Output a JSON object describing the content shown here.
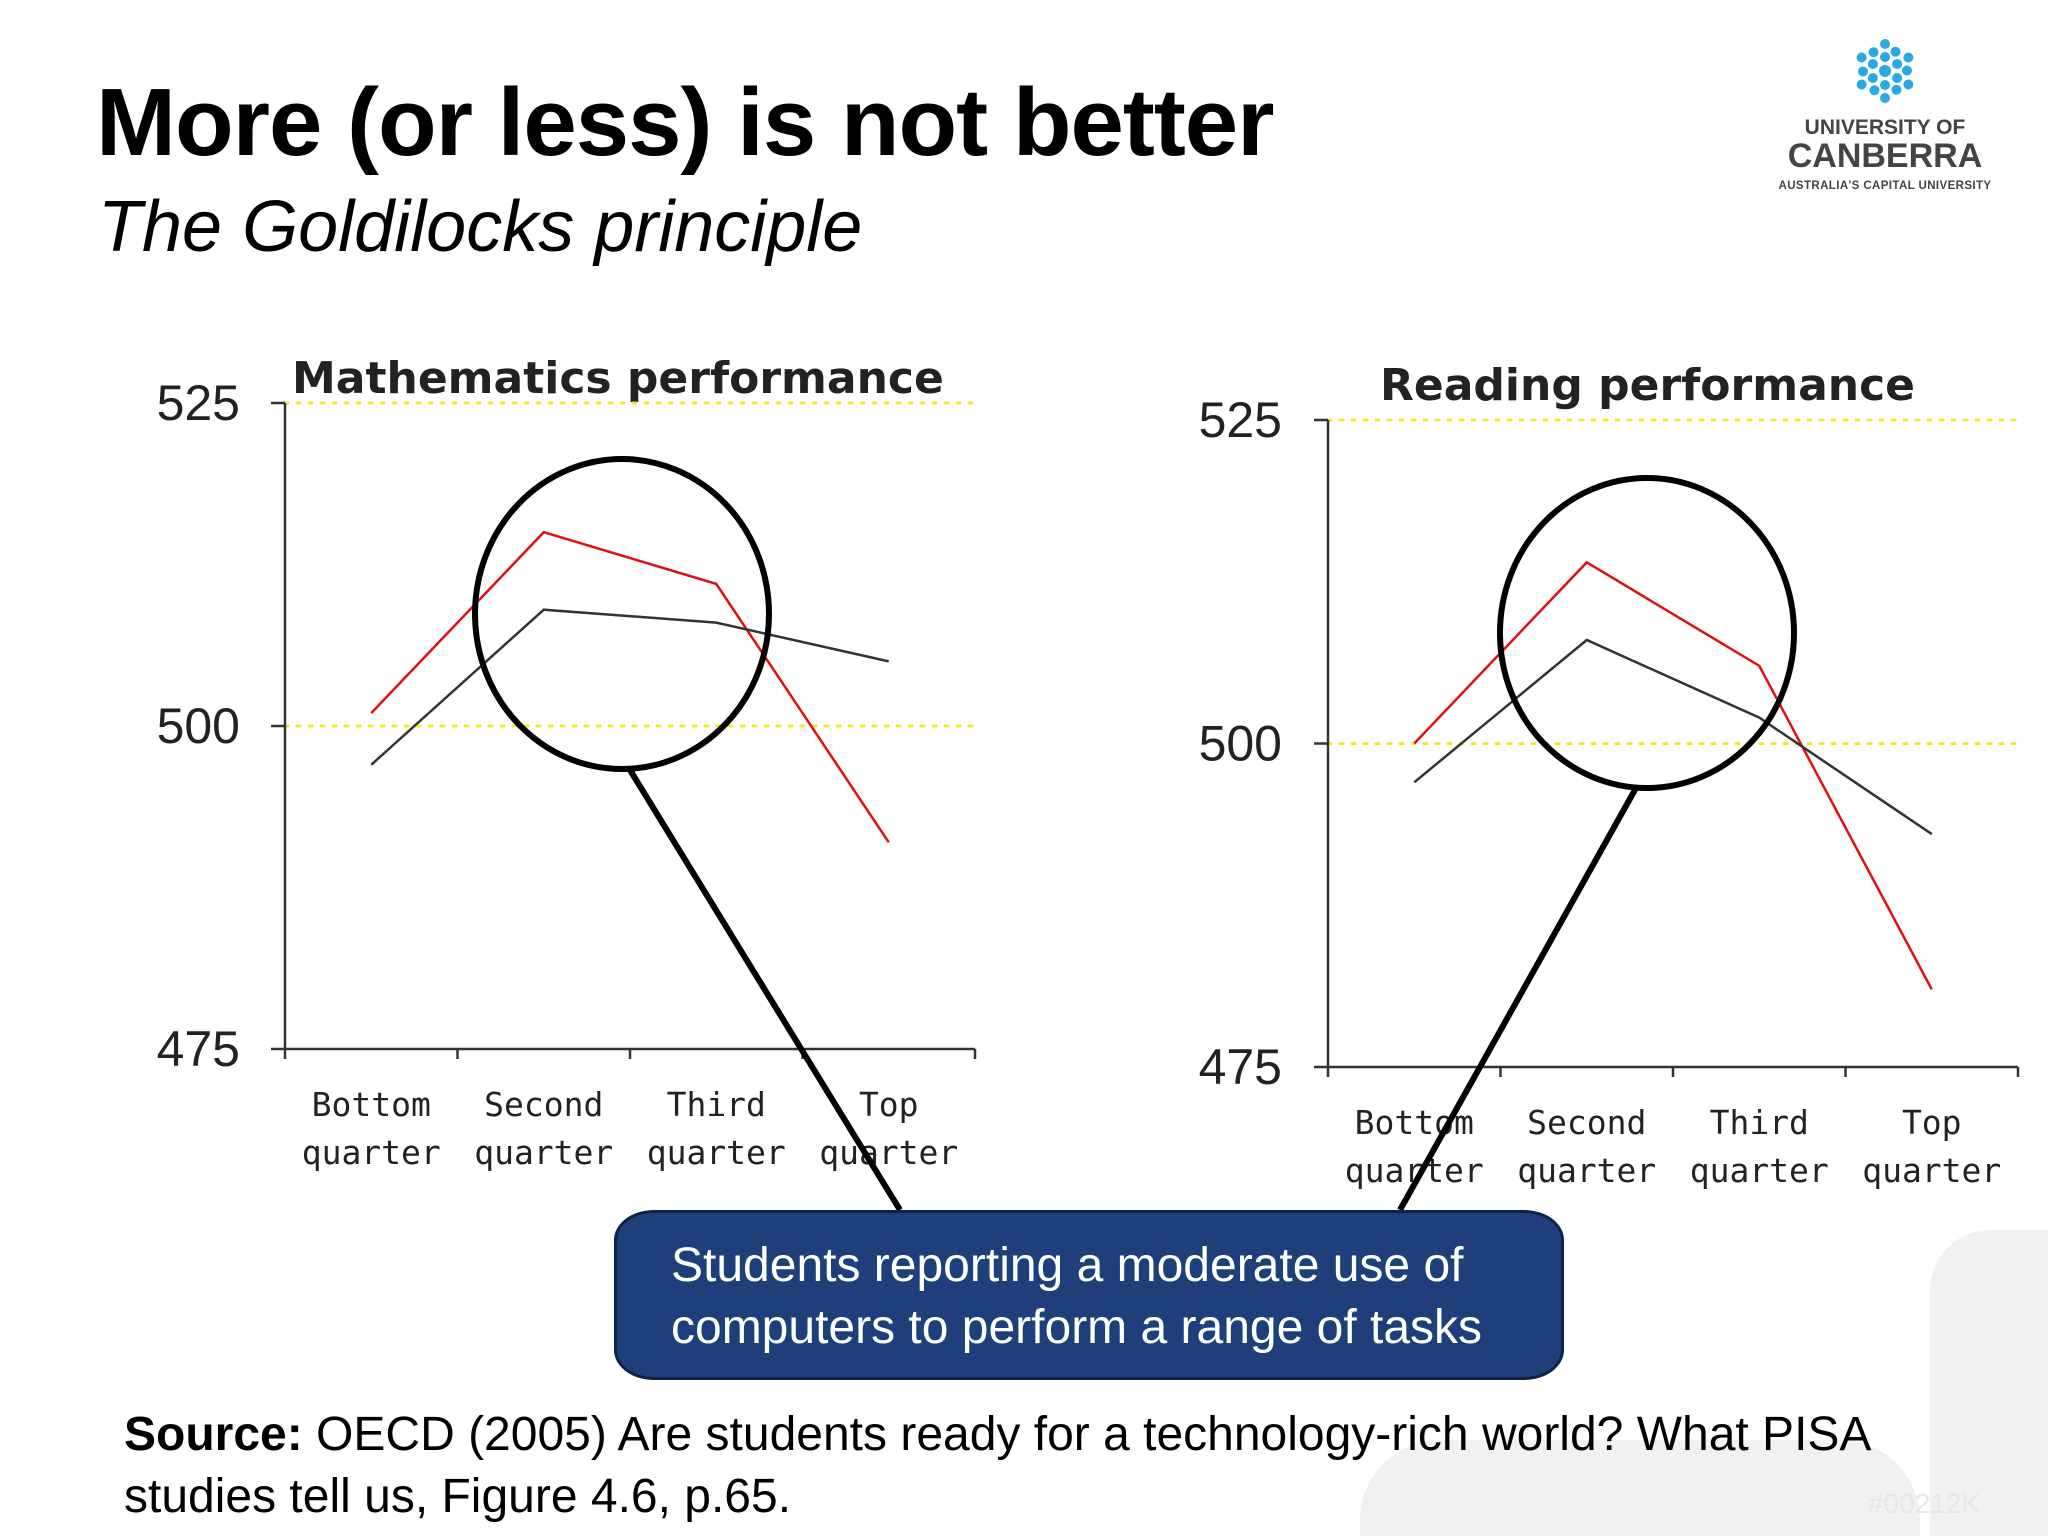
{
  "slide": {
    "title": "More (or less) is not better",
    "subtitle": "The Goldilocks principle"
  },
  "logo": {
    "line1": "UNIVERSITY OF",
    "line2": "CANBERRA",
    "line3": "AUSTRALIA'S CAPITAL UNIVERSITY",
    "icon": "snowflake-molecule-icon",
    "color": "#29a9e1"
  },
  "callout": {
    "text": "Students reporting a moderate use of computers to perform a range of tasks"
  },
  "source": {
    "label": "Source:",
    "text": " OECD (2005) Are students ready for a technology-rich world? What PISA studies tell us, Figure 4.6, p.65."
  },
  "watermark": "#00212K",
  "chart_data": [
    {
      "type": "line",
      "title": "Mathematics performance",
      "categories": [
        [
          "Bottom",
          "quarter"
        ],
        [
          "Second",
          "quarter"
        ],
        [
          "Third",
          "quarter"
        ],
        [
          "Top",
          "quarter"
        ]
      ],
      "ylim": [
        475,
        525
      ],
      "yticks": [
        475,
        500,
        525
      ],
      "reference_lines": [
        500,
        525
      ],
      "series": [
        {
          "color": "#dd1111",
          "values": [
            501,
            515,
            511,
            491
          ]
        },
        {
          "color": "#333333",
          "values": [
            497,
            509,
            508,
            505
          ]
        }
      ],
      "highlight": "Second quarter – Third quarter"
    },
    {
      "type": "line",
      "title": "Reading performance",
      "categories": [
        [
          "Bottom",
          "quarter"
        ],
        [
          "Second",
          "quarter"
        ],
        [
          "Third",
          "quarter"
        ],
        [
          "Top",
          "quarter"
        ]
      ],
      "ylim": [
        475,
        525
      ],
      "yticks": [
        475,
        500,
        525
      ],
      "reference_lines": [
        500,
        525
      ],
      "series": [
        {
          "color": "#dd1111",
          "values": [
            500,
            514,
            506,
            481
          ]
        },
        {
          "color": "#333333",
          "values": [
            497,
            508,
            502,
            493
          ]
        }
      ],
      "highlight": "Second quarter – Third quarter"
    }
  ]
}
